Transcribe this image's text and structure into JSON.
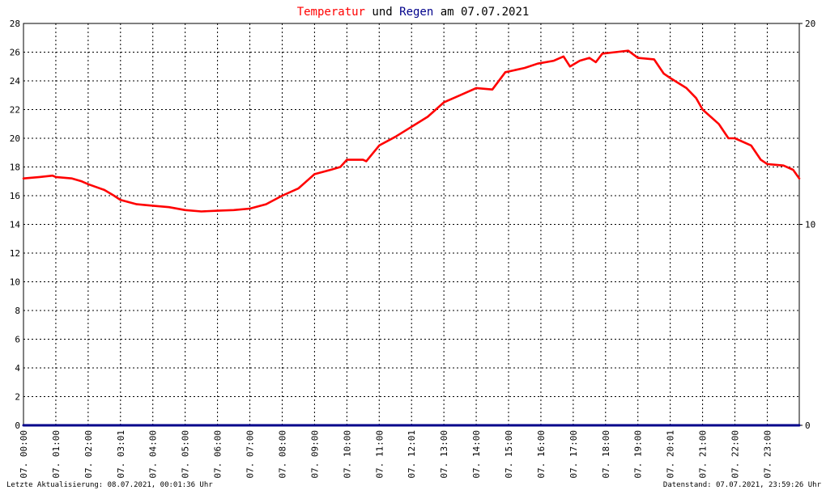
{
  "title": {
    "part1": "Temperatur",
    "part2": " und ",
    "part3": "Regen",
    "part4": " am 07.07.2021",
    "color_temperature": "#ff0000",
    "color_rain": "#00008b",
    "color_text": "#000000"
  },
  "footer": {
    "left": "Letzte Aktualisierung: 08.07.2021, 00:01:36 Uhr",
    "right": "Datenstand: 07.07.2021, 23:59:26 Uhr"
  },
  "chart_data": {
    "type": "line",
    "x_unit": "hour of day",
    "xlim": [
      0,
      23.99
    ],
    "ylim_left": [
      0,
      28
    ],
    "ylim_right": [
      0,
      20
    ],
    "y_ticks_left": [
      "0",
      "2",
      "4",
      "6",
      "8",
      "10",
      "12",
      "14",
      "16",
      "18",
      "20",
      "22",
      "24",
      "26",
      "28"
    ],
    "y_ticks_right": [
      "0",
      "10",
      "20"
    ],
    "x_tick_labels": [
      "07. 00:00",
      "07. 01:00",
      "07. 02:00",
      "07. 03:01",
      "07. 04:00",
      "07. 05:00",
      "07. 06:00",
      "07. 07:00",
      "07. 08:00",
      "07. 09:00",
      "07. 10:00",
      "07. 11:00",
      "07. 12:01",
      "07. 13:00",
      "07. 14:00",
      "07. 15:00",
      "07. 16:00",
      "07. 17:00",
      "07. 18:00",
      "07. 19:00",
      "07. 20:01",
      "07. 21:00",
      "07. 22:00",
      "07. 23:00"
    ],
    "grid": true,
    "series": [
      {
        "name": "Temperatur",
        "axis": "left",
        "color": "#ff0000",
        "x": [
          0,
          0.5,
          0.9,
          1.0,
          1.5,
          1.8,
          2.0,
          2.5,
          2.8,
          3.0,
          3.5,
          4.0,
          4.5,
          5.0,
          5.5,
          6.0,
          6.5,
          7.0,
          7.5,
          8.0,
          8.5,
          9.0,
          9.5,
          9.8,
          10.0,
          10.5,
          10.6,
          11.0,
          11.5,
          12.0,
          12.5,
          13.0,
          13.5,
          14.0,
          14.5,
          14.9,
          15.5,
          15.9,
          16.4,
          16.7,
          16.9,
          17.2,
          17.5,
          17.7,
          17.9,
          18.3,
          18.7,
          19.0,
          19.5,
          19.8,
          20.0,
          20.5,
          20.8,
          21.0,
          21.5,
          21.8,
          22.0,
          22.5,
          22.8,
          23.0,
          23.5,
          23.8,
          23.99
        ],
        "y": [
          17.2,
          17.3,
          17.4,
          17.3,
          17.2,
          17.0,
          16.8,
          16.4,
          16.0,
          15.7,
          15.4,
          15.3,
          15.2,
          15.0,
          14.9,
          14.95,
          15.0,
          15.1,
          15.4,
          16.0,
          16.5,
          17.5,
          17.8,
          18.0,
          18.5,
          18.5,
          18.4,
          19.5,
          20.1,
          20.8,
          21.5,
          22.5,
          23.0,
          23.5,
          23.4,
          24.6,
          24.9,
          25.2,
          25.4,
          25.7,
          25.0,
          25.4,
          25.6,
          25.3,
          25.9,
          26.0,
          26.1,
          25.6,
          25.5,
          24.5,
          24.2,
          23.5,
          22.8,
          22.0,
          21.0,
          20.0,
          20.0,
          19.5,
          18.5,
          18.2,
          18.1,
          17.8,
          17.2
        ]
      },
      {
        "name": "Regen",
        "axis": "right",
        "color": "#00008b",
        "x": [
          0,
          23.99
        ],
        "y": [
          0,
          0
        ]
      }
    ]
  }
}
